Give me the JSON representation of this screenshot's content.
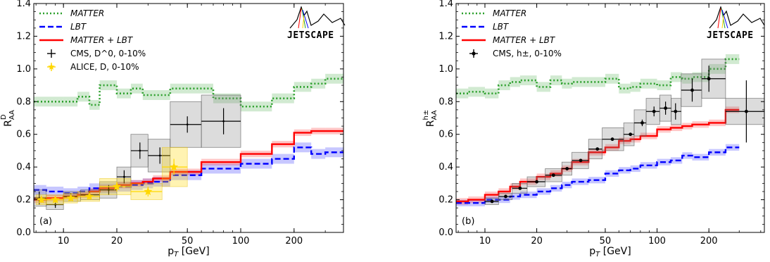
{
  "chart_data": [
    {
      "type": "line",
      "panel_label": "(a)",
      "xlabel": "p_T [GeV]",
      "ylabel": "R_AA^D",
      "ylabel_sup": "D",
      "xscale": "log",
      "xlim": [
        6.8,
        380
      ],
      "ylim": [
        0.0,
        1.4
      ],
      "xticks": [
        10,
        20,
        50,
        100,
        200
      ],
      "yticks": [
        "0.0",
        "0.2",
        "0.4",
        "0.6",
        "0.8",
        "1.0",
        "1.2",
        "1.4"
      ],
      "legend_placement": "top-left",
      "logo": "JETSCAPE",
      "series": [
        {
          "name": "MATTER",
          "style": "dotted",
          "color": "#2ca02c",
          "edges": [
            6.8,
            10,
            12,
            14,
            16,
            20,
            24,
            28,
            32,
            40,
            50,
            60,
            70,
            100,
            150,
            200,
            250,
            300,
            380
          ],
          "values": [
            0.8,
            0.8,
            0.83,
            0.78,
            0.9,
            0.85,
            0.88,
            0.84,
            0.84,
            0.88,
            0.88,
            0.88,
            0.82,
            0.77,
            0.82,
            0.89,
            0.91,
            0.94,
            0.87
          ],
          "band": 0.03
        },
        {
          "name": "LBT",
          "style": "dashed",
          "color": "#0000ff",
          "edges": [
            6.8,
            8,
            10,
            12,
            14,
            16,
            20,
            24,
            28,
            32,
            40,
            50,
            60,
            70,
            100,
            150,
            200,
            250,
            300,
            380
          ],
          "values": [
            0.26,
            0.25,
            0.24,
            0.25,
            0.27,
            0.27,
            0.28,
            0.29,
            0.3,
            0.31,
            0.35,
            0.35,
            0.39,
            0.39,
            0.42,
            0.45,
            0.52,
            0.48,
            0.49,
            0.54
          ],
          "band": 0.03
        },
        {
          "name": "MATTER + LBT",
          "style": "solid",
          "color": "#ff0000",
          "edges": [
            6.8,
            8,
            10,
            12,
            14,
            16,
            20,
            24,
            28,
            32,
            40,
            50,
            60,
            70,
            100,
            150,
            200,
            250,
            300,
            380
          ],
          "values": [
            0.2,
            0.21,
            0.22,
            0.23,
            0.25,
            0.27,
            0.29,
            0.3,
            0.31,
            0.33,
            0.37,
            0.37,
            0.43,
            0.43,
            0.48,
            0.54,
            0.61,
            0.62,
            0.62,
            0.61
          ],
          "band": 0.02
        }
      ],
      "points": [
        {
          "name": "CMS, D^0, 0-10%",
          "color": "#000000",
          "marker": "plus",
          "data": [
            {
              "x": 7.3,
              "y": 0.21,
              "xlo": 6.8,
              "xhi": 8,
              "yerr": 0.04,
              "sys": 0.05
            },
            {
              "x": 9.0,
              "y": 0.17,
              "xlo": 8,
              "xhi": 10,
              "yerr": 0.02,
              "sys": 0.03
            },
            {
              "x": 11.0,
              "y": 0.22,
              "xlo": 10,
              "xhi": 12.5,
              "yerr": 0.02,
              "sys": 0.03
            },
            {
              "x": 14.0,
              "y": 0.23,
              "xlo": 12.5,
              "xhi": 16,
              "yerr": 0.02,
              "sys": 0.03
            },
            {
              "x": 18.0,
              "y": 0.26,
              "xlo": 16,
              "xhi": 20,
              "yerr": 0.03,
              "sys": 0.05
            },
            {
              "x": 22.0,
              "y": 0.34,
              "xlo": 20,
              "xhi": 24,
              "yerr": 0.04,
              "sys": 0.06
            },
            {
              "x": 27.0,
              "y": 0.5,
              "xlo": 24,
              "xhi": 30,
              "yerr": 0.05,
              "sys": 0.1
            },
            {
              "x": 35.0,
              "y": 0.47,
              "xlo": 30,
              "xhi": 40,
              "yerr": 0.05,
              "sys": 0.1
            },
            {
              "x": 50.0,
              "y": 0.66,
              "xlo": 40,
              "xhi": 60,
              "yerr": 0.05,
              "sys": 0.14
            },
            {
              "x": 80.0,
              "y": 0.68,
              "xlo": 60,
              "xhi": 100,
              "yerr": 0.08,
              "sys": 0.16
            }
          ]
        },
        {
          "name": "ALICE, D, 0-10%",
          "color": "#ffd700",
          "marker": "star",
          "data": [
            {
              "x": 7.5,
              "y": 0.2,
              "xlo": 7,
              "xhi": 8,
              "yerr": 0.02,
              "sys": 0.03
            },
            {
              "x": 9.0,
              "y": 0.2,
              "xlo": 8,
              "xhi": 10,
              "yerr": 0.02,
              "sys": 0.03
            },
            {
              "x": 11.0,
              "y": 0.21,
              "xlo": 10,
              "xhi": 12,
              "yerr": 0.02,
              "sys": 0.03
            },
            {
              "x": 14.0,
              "y": 0.22,
              "xlo": 12,
              "xhi": 16,
              "yerr": 0.02,
              "sys": 0.03
            },
            {
              "x": 20.0,
              "y": 0.28,
              "xlo": 16,
              "xhi": 24,
              "yerr": 0.03,
              "sys": 0.05
            },
            {
              "x": 30.0,
              "y": 0.25,
              "xlo": 24,
              "xhi": 36,
              "yerr": 0.03,
              "sys": 0.05
            },
            {
              "x": 42.0,
              "y": 0.4,
              "xlo": 36,
              "xhi": 50,
              "yerr": 0.05,
              "sys": 0.12
            }
          ]
        }
      ]
    },
    {
      "type": "line",
      "panel_label": "(b)",
      "xlabel": "p_T [GeV]",
      "ylabel": "R_AA^h±",
      "ylabel_sup": "h±",
      "xscale": "log",
      "xlim": [
        6.8,
        420
      ],
      "ylim": [
        0.0,
        1.4
      ],
      "xticks": [
        10,
        20,
        50,
        100,
        200
      ],
      "yticks": [
        "0.0",
        "0.2",
        "0.4",
        "0.6",
        "0.8",
        "1.0",
        "1.2",
        "1.4"
      ],
      "legend_placement": "top-left",
      "logo": "JETSCAPE",
      "series": [
        {
          "name": "MATTER",
          "style": "dotted",
          "color": "#2ca02c",
          "edges": [
            6.8,
            8,
            10,
            12,
            14,
            16,
            20,
            24,
            28,
            32,
            40,
            50,
            60,
            70,
            80,
            100,
            120,
            140,
            160,
            200,
            250,
            300
          ],
          "values": [
            0.85,
            0.86,
            0.85,
            0.9,
            0.92,
            0.93,
            0.89,
            0.93,
            0.91,
            0.92,
            0.92,
            0.94,
            0.88,
            0.89,
            0.91,
            0.9,
            0.95,
            0.94,
            0.95,
            1.0,
            1.06
          ],
          "band": 0.03
        },
        {
          "name": "LBT",
          "style": "dashed",
          "color": "#0000ff",
          "edges": [
            6.8,
            8,
            10,
            12,
            14,
            16,
            20,
            24,
            28,
            32,
            40,
            50,
            60,
            70,
            80,
            100,
            120,
            140,
            160,
            200,
            250,
            300
          ],
          "values": [
            0.18,
            0.18,
            0.2,
            0.2,
            0.22,
            0.23,
            0.25,
            0.27,
            0.29,
            0.31,
            0.32,
            0.36,
            0.38,
            0.39,
            0.41,
            0.43,
            0.44,
            0.47,
            0.46,
            0.49,
            0.52
          ],
          "band": 0.02
        },
        {
          "name": "MATTER + LBT",
          "style": "solid",
          "color": "#ff0000",
          "edges": [
            6.8,
            8,
            10,
            12,
            14,
            16,
            20,
            24,
            28,
            32,
            40,
            50,
            60,
            70,
            80,
            100,
            120,
            140,
            160,
            200,
            250,
            300
          ],
          "values": [
            0.19,
            0.2,
            0.23,
            0.25,
            0.28,
            0.31,
            0.34,
            0.36,
            0.39,
            0.43,
            0.49,
            0.52,
            0.56,
            0.57,
            0.59,
            0.63,
            0.64,
            0.65,
            0.66,
            0.67,
            0.75
          ],
          "band": 0.02
        }
      ],
      "points": [
        {
          "name": "CMS, h±, 0-10%",
          "color": "#000000",
          "marker": "dot",
          "data": [
            {
              "x": 11.0,
              "y": 0.19,
              "xlo": 10,
              "xhi": 12,
              "yerr": 0.01,
              "sys": 0.02
            },
            {
              "x": 13.2,
              "y": 0.22,
              "xlo": 12,
              "xhi": 14.4,
              "yerr": 0.01,
              "sys": 0.02
            },
            {
              "x": 16.0,
              "y": 0.27,
              "xlo": 14.4,
              "xhi": 17.6,
              "yerr": 0.01,
              "sys": 0.03
            },
            {
              "x": 20.0,
              "y": 0.31,
              "xlo": 17.6,
              "xhi": 22.4,
              "yerr": 0.01,
              "sys": 0.03
            },
            {
              "x": 25.0,
              "y": 0.35,
              "xlo": 22.4,
              "xhi": 28,
              "yerr": 0.01,
              "sys": 0.04
            },
            {
              "x": 30.0,
              "y": 0.39,
              "xlo": 28,
              "xhi": 32,
              "yerr": 0.01,
              "sys": 0.04
            },
            {
              "x": 36.0,
              "y": 0.44,
              "xlo": 32,
              "xhi": 40,
              "yerr": 0.01,
              "sys": 0.05
            },
            {
              "x": 45.0,
              "y": 0.51,
              "xlo": 40,
              "xhi": 48,
              "yerr": 0.01,
              "sys": 0.06
            },
            {
              "x": 55.0,
              "y": 0.57,
              "xlo": 48,
              "xhi": 64,
              "yerr": 0.01,
              "sys": 0.07
            },
            {
              "x": 70.0,
              "y": 0.6,
              "xlo": 64,
              "xhi": 73.6,
              "yerr": 0.01,
              "sys": 0.07
            },
            {
              "x": 82.0,
              "y": 0.67,
              "xlo": 73.6,
              "xhi": 86.4,
              "yerr": 0.02,
              "sys": 0.08
            },
            {
              "x": 96.0,
              "y": 0.74,
              "xlo": 86.4,
              "xhi": 103.6,
              "yerr": 0.03,
              "sys": 0.08
            },
            {
              "x": 112.0,
              "y": 0.76,
              "xlo": 103.6,
              "xhi": 120.8,
              "yerr": 0.04,
              "sys": 0.08
            },
            {
              "x": 128.0,
              "y": 0.74,
              "xlo": 120.8,
              "xhi": 138,
              "yerr": 0.05,
              "sys": 0.08
            },
            {
              "x": 160.0,
              "y": 0.87,
              "xlo": 138,
              "xhi": 181.6,
              "yerr": 0.07,
              "sys": 0.1
            },
            {
              "x": 200.0,
              "y": 0.94,
              "xlo": 181.6,
              "xhi": 250,
              "yerr": 0.08,
              "sys": 0.12
            },
            {
              "x": 330.0,
              "y": 0.74,
              "xlo": 250,
              "xhi": 420,
              "yerr": 0.19,
              "sys": 0.08
            }
          ]
        }
      ]
    }
  ]
}
